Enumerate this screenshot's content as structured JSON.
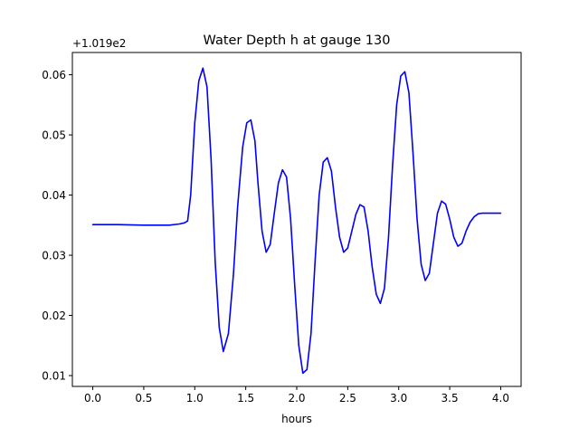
{
  "chart_data": {
    "type": "line",
    "title": "Water Depth h at gauge 130",
    "xlabel": "hours",
    "ylabel": "",
    "offset_text": "+1.019e2",
    "xlim": [
      -0.2,
      4.2
    ],
    "ylim": [
      0.0082,
      0.0637
    ],
    "xticks": [
      0.0,
      0.5,
      1.0,
      1.5,
      2.0,
      2.5,
      3.0,
      3.5,
      4.0
    ],
    "xtick_labels": [
      "0.0",
      "0.5",
      "1.0",
      "1.5",
      "2.0",
      "2.5",
      "3.0",
      "3.5",
      "4.0"
    ],
    "yticks": [
      0.01,
      0.02,
      0.03,
      0.04,
      0.05,
      0.06
    ],
    "ytick_labels": [
      "0.01",
      "0.02",
      "0.03",
      "0.04",
      "0.05",
      "0.06"
    ],
    "grid": false,
    "series": [
      {
        "color": "#0000ff",
        "x": [
          0.0,
          0.25,
          0.5,
          0.75,
          0.85,
          0.9,
          0.93,
          0.96,
          1.0,
          1.04,
          1.08,
          1.12,
          1.16,
          1.2,
          1.24,
          1.28,
          1.33,
          1.38,
          1.42,
          1.47,
          1.51,
          1.55,
          1.59,
          1.62,
          1.66,
          1.7,
          1.74,
          1.78,
          1.82,
          1.86,
          1.9,
          1.94,
          1.98,
          2.02,
          2.06,
          2.1,
          2.14,
          2.18,
          2.22,
          2.26,
          2.3,
          2.34,
          2.38,
          2.42,
          2.46,
          2.5,
          2.54,
          2.58,
          2.62,
          2.66,
          2.7,
          2.74,
          2.78,
          2.82,
          2.86,
          2.9,
          2.94,
          2.98,
          3.02,
          3.06,
          3.1,
          3.14,
          3.18,
          3.22,
          3.26,
          3.3,
          3.34,
          3.38,
          3.42,
          3.46,
          3.5,
          3.54,
          3.58,
          3.62,
          3.66,
          3.7,
          3.74,
          3.78,
          3.82,
          3.86,
          3.9,
          3.94,
          4.0
        ],
        "y": [
          0.0351,
          0.0351,
          0.035,
          0.035,
          0.0352,
          0.0354,
          0.0357,
          0.04,
          0.052,
          0.059,
          0.0611,
          0.058,
          0.046,
          0.029,
          0.018,
          0.014,
          0.017,
          0.027,
          0.038,
          0.048,
          0.052,
          0.0525,
          0.049,
          0.042,
          0.034,
          0.0305,
          0.0318,
          0.037,
          0.042,
          0.0442,
          0.043,
          0.036,
          0.025,
          0.015,
          0.0104,
          0.011,
          0.017,
          0.029,
          0.04,
          0.0455,
          0.0462,
          0.044,
          0.038,
          0.033,
          0.0305,
          0.0312,
          0.034,
          0.0368,
          0.0384,
          0.038,
          0.034,
          0.028,
          0.0235,
          0.022,
          0.0245,
          0.033,
          0.045,
          0.055,
          0.0598,
          0.0605,
          0.057,
          0.047,
          0.036,
          0.0285,
          0.0258,
          0.027,
          0.032,
          0.037,
          0.039,
          0.0385,
          0.036,
          0.033,
          0.0315,
          0.032,
          0.034,
          0.0355,
          0.0364,
          0.0369,
          0.037,
          0.037,
          0.037,
          0.037,
          0.037
        ]
      }
    ]
  }
}
